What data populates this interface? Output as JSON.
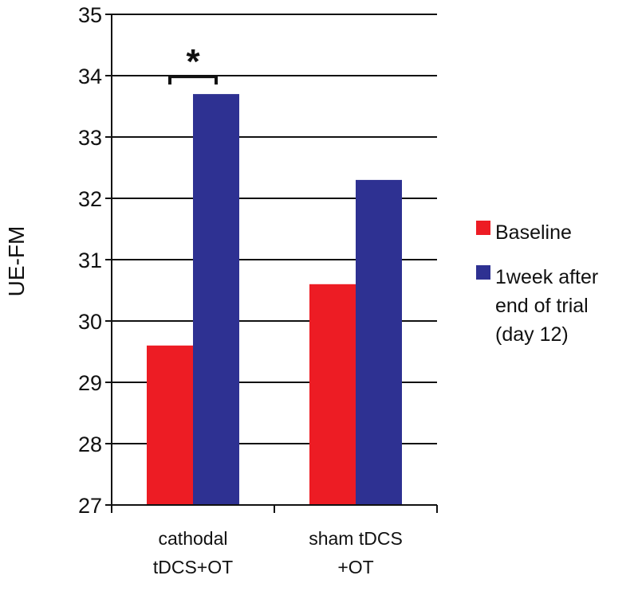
{
  "chart_data": {
    "type": "bar",
    "title": "",
    "xlabel": "",
    "ylabel": "UE-FM",
    "ylim": [
      27,
      35
    ],
    "yticks": [
      "27",
      "28",
      "29",
      "30",
      "31",
      "32",
      "33",
      "34",
      "35"
    ],
    "grid": true,
    "legend_position": "right",
    "categories": [
      [
        "cathodal",
        "tDCS+OT"
      ],
      [
        "sham tDCS",
        "+OT"
      ]
    ],
    "series": [
      {
        "name": "Baseline",
        "color": "#ed1c24",
        "values": [
          29.6,
          30.6
        ]
      },
      {
        "name_lines": [
          "1week after",
          "end of trial",
          "(day 12)"
        ],
        "color": "#2e3192",
        "values": [
          33.7,
          32.3
        ]
      }
    ],
    "annotations": [
      {
        "text": "*",
        "category_index": 0,
        "type": "significance-bracket"
      }
    ]
  }
}
